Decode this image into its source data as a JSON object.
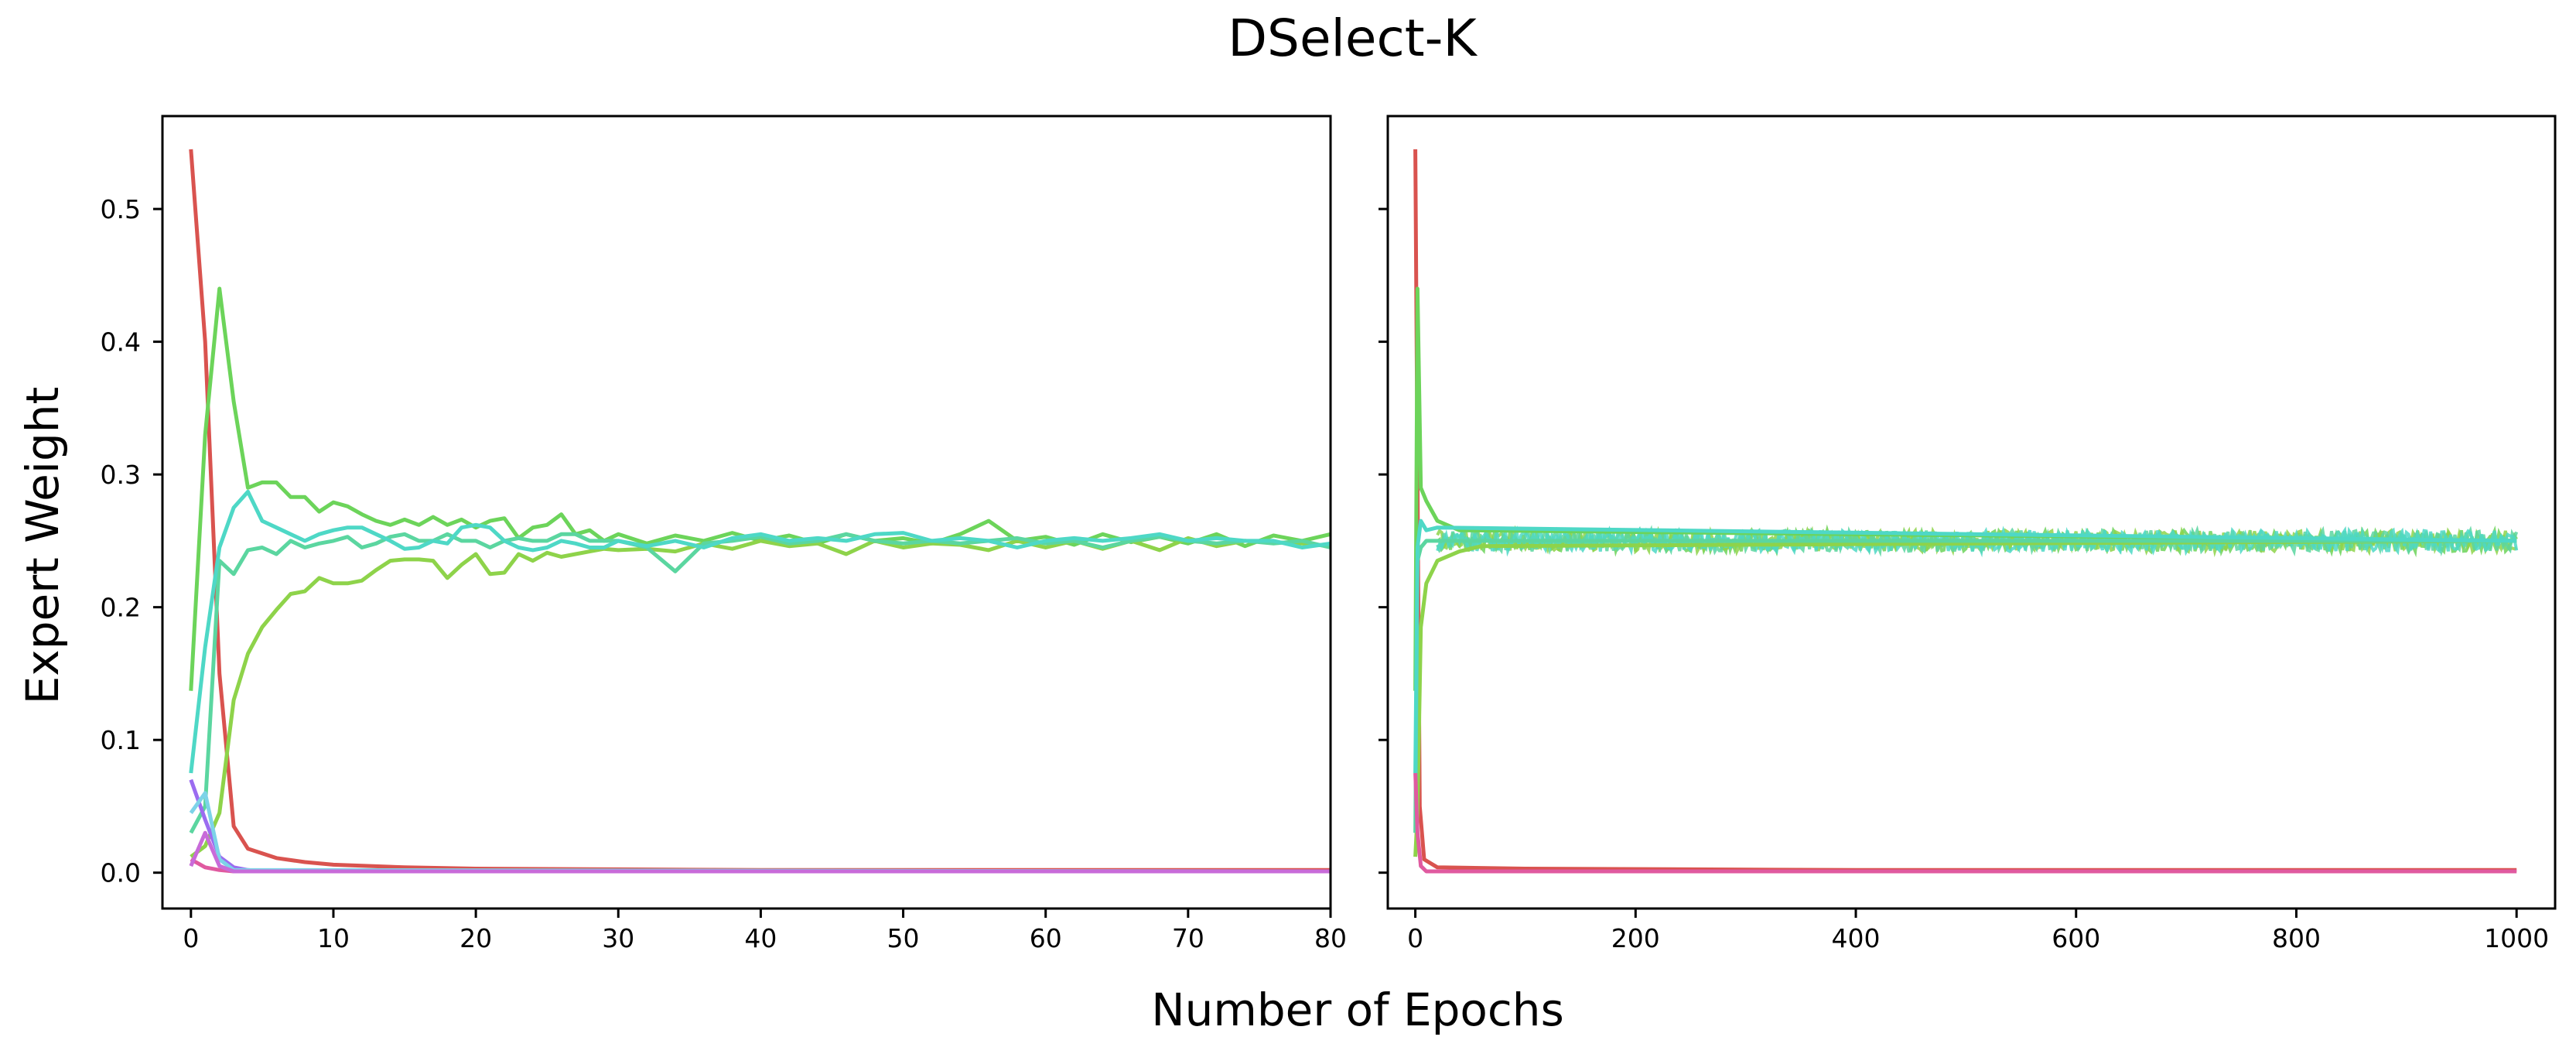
{
  "figure": {
    "title": "DSelect-K",
    "xlabel": "Number of Epochs",
    "ylabel": "Expert Weight"
  },
  "chart_data": [
    {
      "type": "line",
      "title": "",
      "xlabel": "Number of Epochs",
      "ylabel": "Expert Weight",
      "xlim": [
        -2,
        80
      ],
      "ylim": [
        -0.027,
        0.57
      ],
      "xticks": [
        0,
        10,
        20,
        30,
        40,
        50,
        60,
        70,
        80
      ],
      "yticks": [
        0.0,
        0.1,
        0.2,
        0.3,
        0.4,
        0.5
      ],
      "ytick_labels": [
        "0.0",
        "0.1",
        "0.2",
        "0.3",
        "0.4",
        "0.5"
      ],
      "grid": false,
      "legend": "none",
      "series": [
        {
          "color": "#d9534f",
          "x": [
            0,
            1,
            2,
            3,
            4,
            6,
            8,
            10,
            15,
            20,
            30,
            40,
            50,
            60,
            70,
            80
          ],
          "y": [
            0.545,
            0.4,
            0.15,
            0.035,
            0.018,
            0.011,
            0.008,
            0.006,
            0.004,
            0.003,
            0.0025,
            0.002,
            0.002,
            0.002,
            0.002,
            0.002
          ]
        },
        {
          "color": "#6cd45a",
          "x": [
            0,
            1,
            2,
            3,
            4,
            5,
            6,
            7,
            8,
            9,
            10,
            11,
            12,
            13,
            14,
            15,
            16,
            17,
            18,
            19,
            20,
            21,
            22,
            23,
            24,
            25,
            26,
            27,
            28,
            29,
            30,
            32,
            34,
            36,
            38,
            40,
            42,
            44,
            46,
            48,
            50,
            52,
            54,
            56,
            58,
            60,
            62,
            64,
            66,
            68,
            70,
            72,
            74,
            76,
            78,
            80
          ],
          "y": [
            0.137,
            0.33,
            0.44,
            0.355,
            0.29,
            0.294,
            0.294,
            0.283,
            0.283,
            0.272,
            0.279,
            0.276,
            0.27,
            0.265,
            0.262,
            0.266,
            0.262,
            0.268,
            0.262,
            0.266,
            0.26,
            0.265,
            0.267,
            0.252,
            0.26,
            0.262,
            0.27,
            0.255,
            0.258,
            0.25,
            0.255,
            0.248,
            0.254,
            0.25,
            0.256,
            0.25,
            0.254,
            0.248,
            0.255,
            0.25,
            0.252,
            0.248,
            0.255,
            0.265,
            0.25,
            0.253,
            0.247,
            0.255,
            0.249,
            0.253,
            0.248,
            0.255,
            0.246,
            0.254,
            0.25,
            0.255
          ]
        },
        {
          "color": "#8ed34a",
          "x": [
            0,
            1,
            2,
            3,
            4,
            5,
            6,
            7,
            8,
            9,
            10,
            11,
            12,
            13,
            14,
            15,
            16,
            17,
            18,
            19,
            20,
            21,
            22,
            23,
            24,
            25,
            26,
            27,
            28,
            29,
            30,
            32,
            34,
            36,
            38,
            40,
            42,
            44,
            46,
            48,
            50,
            52,
            54,
            56,
            58,
            60,
            62,
            64,
            66,
            68,
            70,
            72,
            74,
            76,
            78,
            80
          ],
          "y": [
            0.012,
            0.02,
            0.045,
            0.13,
            0.165,
            0.185,
            0.198,
            0.21,
            0.212,
            0.222,
            0.218,
            0.218,
            0.22,
            0.228,
            0.235,
            0.236,
            0.236,
            0.235,
            0.222,
            0.232,
            0.24,
            0.225,
            0.226,
            0.24,
            0.235,
            0.241,
            0.238,
            0.24,
            0.242,
            0.244,
            0.243,
            0.244,
            0.242,
            0.248,
            0.244,
            0.25,
            0.246,
            0.248,
            0.24,
            0.25,
            0.245,
            0.248,
            0.247,
            0.243,
            0.25,
            0.245,
            0.25,
            0.244,
            0.25,
            0.243,
            0.252,
            0.246,
            0.25,
            0.249,
            0.248,
            0.246
          ]
        },
        {
          "color": "#5bd6a0",
          "x": [
            0,
            1,
            2,
            3,
            4,
            5,
            6,
            7,
            8,
            9,
            10,
            11,
            12,
            13,
            14,
            15,
            16,
            17,
            18,
            19,
            20,
            21,
            22,
            23,
            24,
            25,
            26,
            27,
            28,
            29,
            30,
            32,
            34,
            36,
            38,
            40,
            42,
            44,
            46,
            48,
            50,
            52,
            54,
            56,
            58,
            60,
            62,
            64,
            66,
            68,
            70,
            72,
            74,
            76,
            78,
            80
          ],
          "y": [
            0.03,
            0.05,
            0.235,
            0.225,
            0.243,
            0.245,
            0.24,
            0.25,
            0.245,
            0.248,
            0.25,
            0.253,
            0.245,
            0.248,
            0.253,
            0.255,
            0.25,
            0.25,
            0.255,
            0.25,
            0.25,
            0.245,
            0.25,
            0.252,
            0.25,
            0.25,
            0.255,
            0.255,
            0.25,
            0.25,
            0.25,
            0.245,
            0.227,
            0.248,
            0.25,
            0.253,
            0.248,
            0.25,
            0.255,
            0.25,
            0.248,
            0.25,
            0.248,
            0.25,
            0.252,
            0.248,
            0.25,
            0.245,
            0.25,
            0.253,
            0.25,
            0.248,
            0.25,
            0.248,
            0.25,
            0.245
          ]
        },
        {
          "color": "#4ed8c6",
          "x": [
            0,
            1,
            2,
            3,
            4,
            5,
            6,
            7,
            8,
            9,
            10,
            11,
            12,
            13,
            14,
            15,
            16,
            17,
            18,
            19,
            20,
            21,
            22,
            23,
            24,
            25,
            26,
            27,
            28,
            29,
            30,
            32,
            34,
            36,
            38,
            40,
            42,
            44,
            46,
            48,
            50,
            52,
            54,
            56,
            58,
            60,
            62,
            64,
            66,
            68,
            70,
            72,
            74,
            76,
            78,
            80
          ],
          "y": [
            0.075,
            0.17,
            0.245,
            0.275,
            0.287,
            0.265,
            0.26,
            0.255,
            0.25,
            0.255,
            0.258,
            0.26,
            0.26,
            0.255,
            0.25,
            0.244,
            0.245,
            0.25,
            0.248,
            0.26,
            0.262,
            0.26,
            0.25,
            0.245,
            0.243,
            0.245,
            0.25,
            0.248,
            0.245,
            0.245,
            0.25,
            0.246,
            0.25,
            0.245,
            0.252,
            0.255,
            0.25,
            0.252,
            0.25,
            0.255,
            0.256,
            0.25,
            0.252,
            0.25,
            0.245,
            0.25,
            0.252,
            0.25,
            0.252,
            0.255,
            0.25,
            0.252,
            0.25,
            0.25,
            0.245,
            0.248
          ]
        },
        {
          "color": "#9b6cf0",
          "x": [
            0,
            1,
            2,
            3,
            4,
            5,
            80
          ],
          "y": [
            0.07,
            0.04,
            0.012,
            0.004,
            0.002,
            0.001,
            0.001
          ]
        },
        {
          "color": "#7dd3e8",
          "x": [
            0,
            1,
            2,
            3,
            80
          ],
          "y": [
            0.045,
            0.06,
            0.01,
            0.002,
            0.001
          ]
        },
        {
          "color": "#e05aa0",
          "x": [
            0,
            1,
            2,
            3,
            80
          ],
          "y": [
            0.01,
            0.004,
            0.002,
            0.001,
            0.001
          ]
        },
        {
          "color": "#c86bd9",
          "x": [
            0,
            1,
            2,
            3,
            80
          ],
          "y": [
            0.005,
            0.03,
            0.005,
            0.001,
            0.001
          ]
        }
      ]
    },
    {
      "type": "line",
      "title": "",
      "xlabel": "Number of Epochs",
      "ylabel": "",
      "xlim": [
        -25,
        1035
      ],
      "ylim": [
        -0.027,
        0.57
      ],
      "xticks": [
        0,
        200,
        400,
        600,
        800,
        1000
      ],
      "yticks": [
        0.0,
        0.1,
        0.2,
        0.3,
        0.4,
        0.5
      ],
      "ytick_labels": [],
      "grid": false,
      "legend": "none",
      "noise_band": {
        "x_from": 20,
        "x_to": 1000,
        "center": 0.25,
        "amplitude": 0.008
      },
      "series": [
        {
          "color": "#d9534f",
          "x": [
            0,
            2,
            4,
            8,
            20,
            100,
            400,
            1000
          ],
          "y": [
            0.545,
            0.3,
            0.05,
            0.01,
            0.004,
            0.003,
            0.002,
            0.002
          ]
        },
        {
          "color": "#6cd45a",
          "x": [
            0,
            2,
            5,
            10,
            20,
            40,
            1000
          ],
          "y": [
            0.137,
            0.44,
            0.29,
            0.28,
            0.265,
            0.258,
            0.25
          ]
        },
        {
          "color": "#8ed34a",
          "x": [
            0,
            2,
            5,
            10,
            20,
            40,
            60,
            1000
          ],
          "y": [
            0.012,
            0.045,
            0.185,
            0.218,
            0.235,
            0.242,
            0.246,
            0.25
          ]
        },
        {
          "color": "#5bd6a0",
          "x": [
            0,
            2,
            5,
            10,
            20,
            1000
          ],
          "y": [
            0.03,
            0.235,
            0.245,
            0.25,
            0.25,
            0.25
          ]
        },
        {
          "color": "#4ed8c6",
          "x": [
            0,
            2,
            5,
            10,
            20,
            1000
          ],
          "y": [
            0.075,
            0.245,
            0.265,
            0.258,
            0.26,
            0.25
          ]
        },
        {
          "color": "#e05aa0",
          "x": [
            0,
            2,
            5,
            10,
            1000
          ],
          "y": [
            0.075,
            0.03,
            0.005,
            0.001,
            0.001
          ]
        }
      ]
    }
  ]
}
